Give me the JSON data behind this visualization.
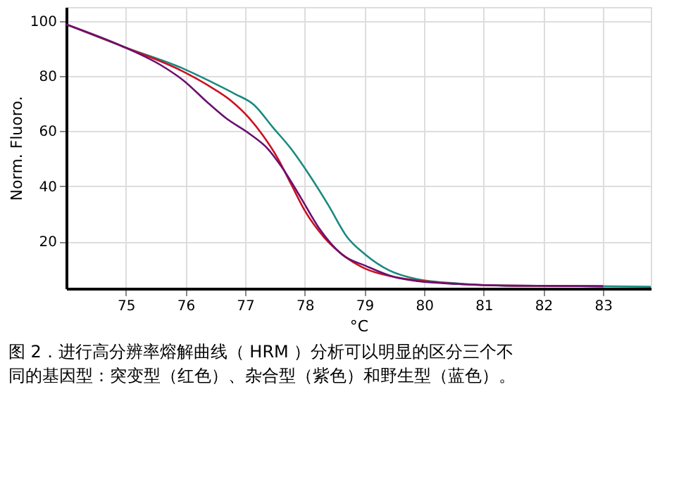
{
  "chart_data": {
    "type": "line",
    "xlabel": "°C",
    "ylabel": "Norm. Fluoro.",
    "xlim": [
      74.0,
      83.8
    ],
    "xticks": [
      75,
      76,
      77,
      78,
      79,
      80,
      81,
      82,
      83
    ],
    "ylim": [
      3,
      105
    ],
    "yticks": [
      20,
      40,
      60,
      80,
      100
    ],
    "grid": true,
    "legend": false,
    "line_style": "solid",
    "marker": "none",
    "series": [
      {
        "color": "#1a8a80",
        "x": [
          74.0,
          74.96,
          75.97,
          76.44,
          76.83,
          77.15,
          77.46,
          77.77,
          78.08,
          78.4,
          78.71,
          79.02,
          79.41,
          79.88,
          80.58,
          81.35,
          82.92,
          83.8
        ],
        "values": [
          98.7,
          90.6,
          82.6,
          77.8,
          73.5,
          69.5,
          61.5,
          53.6,
          44,
          33,
          21.6,
          15.2,
          9.6,
          6.4,
          4.8,
          4.0,
          3.8,
          3.6
        ]
      },
      {
        "color": "#cc1020",
        "x": [
          74.0,
          74.96,
          75.97,
          76.37,
          76.76,
          77.07,
          77.3,
          77.54,
          77.77,
          78.0,
          78.32,
          78.71,
          79.02,
          79.49,
          80.03,
          80.58,
          81.5,
          83.0
        ],
        "values": [
          98.7,
          90.6,
          81.5,
          76.7,
          71.1,
          64.7,
          58.4,
          50.4,
          40.8,
          31.2,
          21.6,
          14.0,
          10.1,
          7.2,
          5.6,
          4.6,
          4.0,
          3.8
        ]
      },
      {
        "color": "#6a1070",
        "x": [
          74.0,
          74.96,
          75.59,
          75.97,
          76.37,
          76.68,
          77.07,
          77.38,
          77.61,
          77.93,
          78.24,
          78.63,
          79.02,
          79.49,
          79.9,
          80.58,
          81.5,
          83.0
        ],
        "values": [
          98.7,
          90.6,
          83.9,
          78.3,
          70.4,
          64.7,
          59.1,
          53.6,
          47.1,
          36,
          24.8,
          15.2,
          11.2,
          7.2,
          5.6,
          4.6,
          4.0,
          3.8
        ]
      }
    ],
    "annotations": [
      "图 2．进行高分辨率熔解曲线（ HRM ）分析可以明显的区分三个不同的基因型：突变型（红色）、杂合型（紫色）和野生型（蓝色）。"
    ]
  }
}
